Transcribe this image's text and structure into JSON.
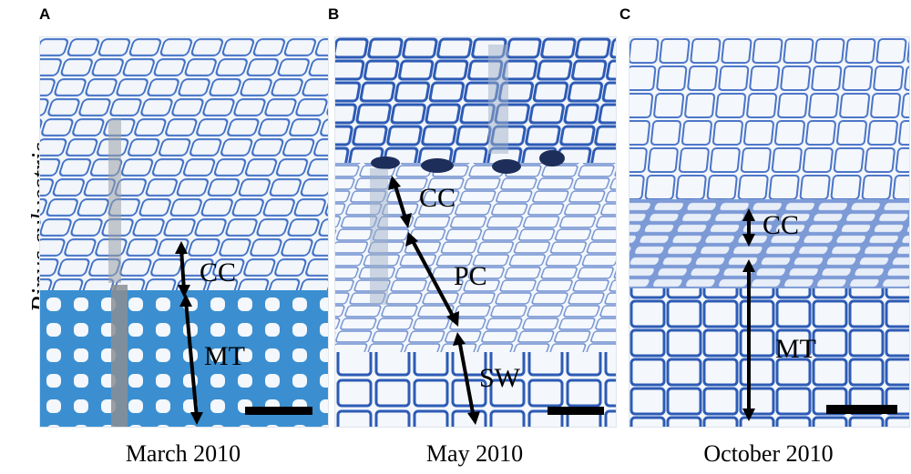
{
  "figure": {
    "species": "Pinus sylvestris",
    "panels": [
      {
        "letter": "A",
        "caption": "March 2010",
        "zone_labels": [
          "CC",
          "MT"
        ]
      },
      {
        "letter": "B",
        "caption": "May 2010",
        "zone_labels": [
          "CC",
          "PC",
          "SW"
        ]
      },
      {
        "letter": "C",
        "caption": "October 2010",
        "zone_labels": [
          "CC",
          "MT"
        ]
      }
    ]
  },
  "colors": {
    "cell_wall": "#2d5bb5",
    "thick_wall": "#3b8fd0",
    "cell_lumen": "#f3f6fb",
    "scale_bar": "#000000"
  }
}
